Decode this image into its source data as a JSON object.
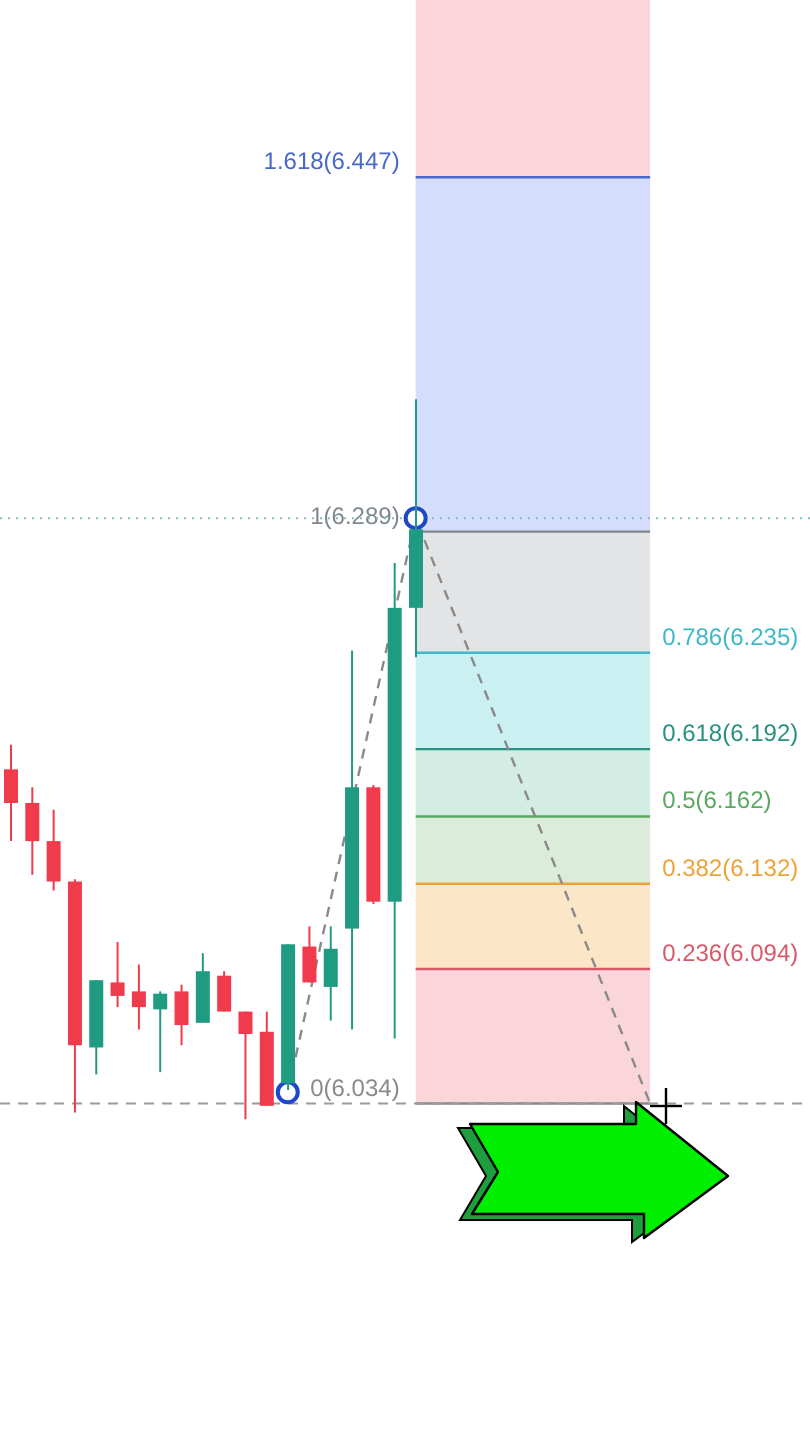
{
  "chart_data": {
    "type": "candlestick",
    "categories": [
      null,
      null,
      null,
      null,
      null,
      null,
      null,
      null,
      null,
      null,
      null,
      null,
      null,
      null,
      null,
      null,
      null,
      null,
      null,
      null,
      null,
      null,
      null,
      null,
      null,
      null,
      null,
      null,
      null,
      null,
      null,
      null,
      null,
      null,
      null,
      null,
      null,
      null
    ],
    "series": [
      {
        "type": "candlestick",
        "ohlc": [
          [
            6.183,
            6.194,
            6.151,
            6.168
          ],
          [
            6.168,
            6.175,
            6.136,
            6.151
          ],
          [
            6.151,
            6.165,
            6.129,
            6.133
          ],
          [
            6.133,
            6.134,
            6.03,
            6.06
          ],
          [
            6.059,
            6.089,
            6.047,
            6.089
          ],
          [
            6.088,
            6.106,
            6.077,
            6.082
          ],
          [
            6.084,
            6.096,
            6.067,
            6.077
          ],
          [
            6.076,
            6.084,
            6.048,
            6.083
          ],
          [
            6.084,
            6.087,
            6.06,
            6.069
          ],
          [
            6.07,
            6.101,
            6.07,
            6.093
          ],
          [
            6.091,
            6.093,
            6.075,
            6.075
          ],
          [
            6.075,
            6.075,
            6.027,
            6.065
          ],
          [
            6.066,
            6.075,
            6.033,
            6.033
          ],
          [
            6.043,
            6.105,
            6.04,
            6.105
          ],
          [
            6.104,
            6.113,
            6.088,
            6.088
          ],
          [
            6.086,
            6.113,
            6.071,
            6.103
          ],
          [
            6.112,
            6.236,
            6.067,
            6.175
          ],
          [
            6.175,
            6.176,
            6.123,
            6.124
          ],
          [
            6.124,
            6.275,
            6.063,
            6.255
          ],
          [
            6.255,
            6.348,
            6.233,
            6.29
          ],
          null,
          null,
          null,
          null,
          null,
          null,
          null,
          null,
          null,
          null,
          null,
          null,
          null,
          null,
          null,
          null,
          null,
          null
        ],
        "colors": [
          "#ef3b4b",
          "#ef3b4b",
          "#ef3b4b",
          "#ef3b4b",
          "#1f9b82",
          "#ef3b4b",
          "#ef3b4b",
          "#1f9b82",
          "#ef3b4b",
          "#1f9b82",
          "#ef3b4b",
          "#ef3b4b",
          "#ef3b4b",
          "#1f9b82",
          "#ef3b4b",
          "#1f9b82",
          "#1f9b82",
          "#ef3b4b",
          "#1f9b82",
          "#1f9b82",
          null,
          null,
          null,
          null,
          null,
          null,
          null,
          null,
          null,
          null,
          null,
          null,
          null,
          null,
          null,
          null,
          null,
          null
        ]
      },
      {
        "type": "line",
        "color": "#8a8a8a",
        "line_style": "dashed",
        "values": [
          null,
          null,
          null,
          null,
          null,
          null,
          null,
          null,
          null,
          null,
          null,
          null,
          null,
          6.039,
          null,
          null,
          null,
          null,
          null,
          6.295,
          null,
          null,
          null,
          null,
          null,
          null,
          null,
          null,
          null,
          null,
          6.034,
          null,
          null,
          null,
          null,
          null,
          null,
          null
        ]
      },
      {
        "type": "scatter",
        "color": "#1f48c8",
        "marker": "circle",
        "values": [
          null,
          null,
          null,
          null,
          null,
          null,
          null,
          null,
          null,
          null,
          null,
          null,
          null,
          6.039,
          null,
          null,
          null,
          null,
          null,
          6.295,
          null,
          null,
          null,
          null,
          null,
          null,
          null,
          null,
          null,
          null,
          null,
          null,
          null,
          null,
          null,
          null,
          null,
          null
        ]
      }
    ],
    "ylim": [
      5.884,
      6.526
    ],
    "bands": [
      {
        "axis": "y",
        "from": 6.447,
        "to": 6.526,
        "color": "#fad6da"
      },
      {
        "axis": "y",
        "from": 6.289,
        "to": 6.447,
        "color": "#d4defc"
      },
      {
        "axis": "y",
        "from": 6.235,
        "to": 6.289,
        "color": "#e3e4e6"
      },
      {
        "axis": "y",
        "from": 6.192,
        "to": 6.235,
        "color": "#caf0f1"
      },
      {
        "axis": "y",
        "from": 6.162,
        "to": 6.192,
        "color": "#d3ede5"
      },
      {
        "axis": "y",
        "from": 6.132,
        "to": 6.162,
        "color": "#dcecda"
      },
      {
        "axis": "y",
        "from": 6.094,
        "to": 6.132,
        "color": "#fbe7c8"
      },
      {
        "axis": "y",
        "from": 6.034,
        "to": 6.094,
        "color": "#fad6da"
      }
    ],
    "ref_lines": [
      {
        "axis": "y",
        "value": 6.447,
        "label": "1.618(6.447)",
        "color": "#4a68c8"
      },
      {
        "axis": "y",
        "value": 6.289,
        "label": "1(6.289)",
        "color": "#808890"
      },
      {
        "axis": "y",
        "value": 6.235,
        "label": "0.786(6.235)",
        "color": "#3fb8c8"
      },
      {
        "axis": "y",
        "value": 6.192,
        "label": "0.618(6.192)",
        "color": "#2a9080"
      },
      {
        "axis": "y",
        "value": 6.162,
        "label": "0.5(6.162)",
        "color": "#5aa860"
      },
      {
        "axis": "y",
        "value": 6.132,
        "label": "0.382(6.132)",
        "color": "#eba33a"
      },
      {
        "axis": "y",
        "value": 6.094,
        "label": "0.236(6.094)",
        "color": "#d75a6a"
      },
      {
        "axis": "y",
        "value": 6.034,
        "label": "0(6.034)",
        "color": "#8a8a8a"
      },
      {
        "axis": "y",
        "value": 6.295,
        "color": "#7cc0c0",
        "line_style": "dotted"
      },
      {
        "axis": "y",
        "value": 6.034,
        "color": "#9a9a9a",
        "line_style": "dashed"
      }
    ],
    "tick_labels": false
  }
}
